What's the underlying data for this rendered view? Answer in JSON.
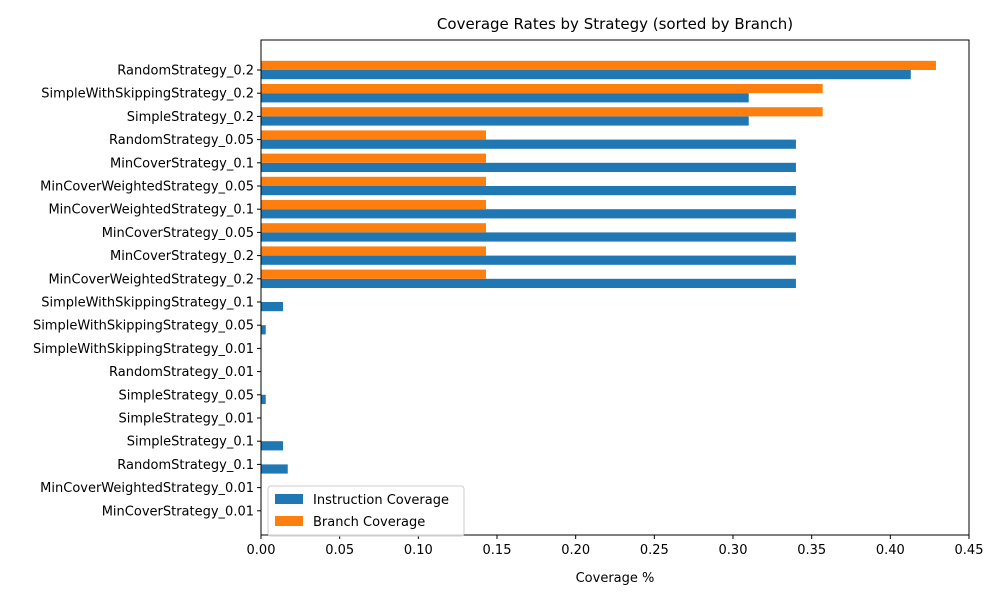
{
  "chart_data": {
    "type": "bar",
    "orientation": "horizontal",
    "title": "Coverage Rates by Strategy (sorted by Branch)",
    "xlabel": "Coverage %",
    "ylabel": "",
    "xlim": [
      0,
      0.45
    ],
    "xticks": [
      "0.00",
      "0.05",
      "0.10",
      "0.15",
      "0.20",
      "0.25",
      "0.30",
      "0.35",
      "0.40",
      "0.45"
    ],
    "grid": false,
    "legend_position": "lower-left",
    "categories": [
      "RandomStrategy_0.2",
      "SimpleWithSkippingStrategy_0.2",
      "SimpleStrategy_0.2",
      "RandomStrategy_0.05",
      "MinCoverStrategy_0.1",
      "MinCoverWeightedStrategy_0.05",
      "MinCoverWeightedStrategy_0.1",
      "MinCoverStrategy_0.05",
      "MinCoverStrategy_0.2",
      "MinCoverWeightedStrategy_0.2",
      "SimpleWithSkippingStrategy_0.1",
      "SimpleWithSkippingStrategy_0.05",
      "SimpleWithSkippingStrategy_0.01",
      "RandomStrategy_0.01",
      "SimpleStrategy_0.05",
      "SimpleStrategy_0.01",
      "SimpleStrategy_0.1",
      "RandomStrategy_0.1",
      "MinCoverWeightedStrategy_0.01",
      "MinCoverStrategy_0.01"
    ],
    "series": [
      {
        "name": "Instruction Coverage",
        "color": "#1f77b4",
        "values": [
          0.413,
          0.31,
          0.31,
          0.34,
          0.34,
          0.34,
          0.34,
          0.34,
          0.34,
          0.34,
          0.014,
          0.003,
          0.0,
          0.0,
          0.003,
          0.0,
          0.014,
          0.017,
          0.0,
          0.0
        ]
      },
      {
        "name": "Branch Coverage",
        "color": "#ff7f0e",
        "values": [
          0.429,
          0.357,
          0.357,
          0.143,
          0.143,
          0.143,
          0.143,
          0.143,
          0.143,
          0.143,
          0.0,
          0.0,
          0.0,
          0.0,
          0.0,
          0.0,
          0.0,
          0.0,
          0.0,
          0.0
        ]
      }
    ]
  }
}
